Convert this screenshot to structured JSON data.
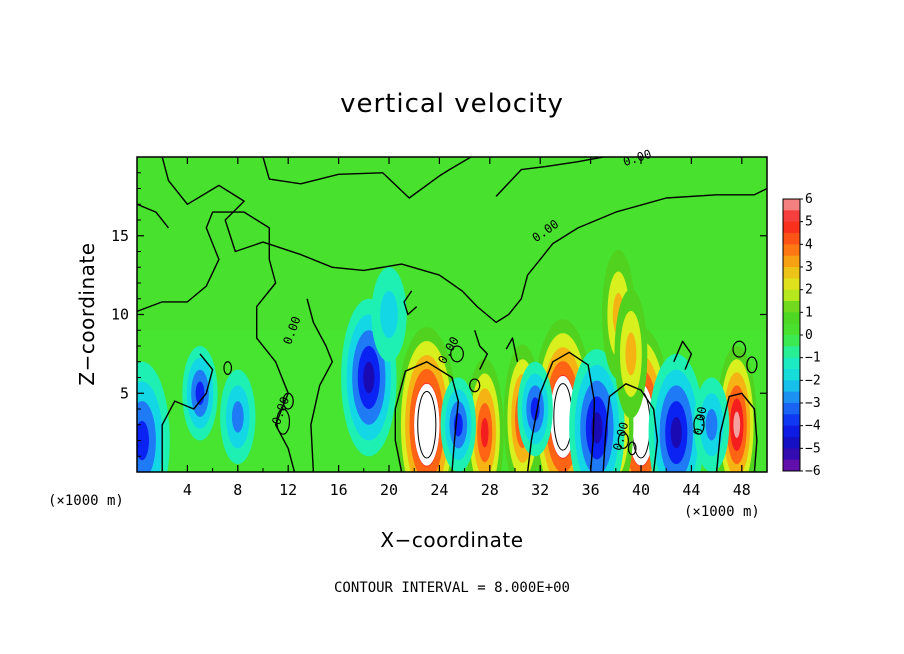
{
  "chart_data": {
    "type": "heatmap",
    "title": "vertical velocity",
    "xlabel": "X−coordinate",
    "ylabel": "Z−coordinate",
    "x_unit_left": "(×1000 m)",
    "x_unit_right": "(×1000 m)",
    "xlim": [
      0,
      50
    ],
    "ylim": [
      0,
      20
    ],
    "x_ticks": [
      4,
      8,
      12,
      16,
      20,
      24,
      28,
      32,
      36,
      40,
      44,
      48
    ],
    "y_ticks": [
      5,
      10,
      15
    ],
    "colorbar": {
      "min": -6,
      "max": 6,
      "ticks": [
        "6",
        "5",
        "4",
        "3",
        "2",
        "1",
        "0",
        "−1",
        "−2",
        "−3",
        "−4",
        "−5",
        "−6"
      ]
    },
    "contour_labels": [
      "0.00",
      "0.00",
      "0.00",
      "0.00",
      "0.00",
      "0.00",
      "0.00"
    ],
    "footnote": "CONTOUR INTERVAL = 8.000E+00",
    "features": [
      {
        "x": 23,
        "z": 3,
        "w": 9,
        "kind": "updraft"
      },
      {
        "x": 33.8,
        "z": 3.5,
        "w": 10,
        "kind": "updraft"
      },
      {
        "x": 40,
        "z": 3,
        "w": 8,
        "kind": "updraft"
      },
      {
        "x": 47.6,
        "z": 3,
        "w": 6,
        "kind": "updraft"
      },
      {
        "x": 27.6,
        "z": 2.5,
        "w": 5,
        "kind": "updraft"
      },
      {
        "x": 30.6,
        "z": 3.4,
        "w": 5,
        "kind": "updraft"
      },
      {
        "x": 38,
        "z": 3,
        "w": 4,
        "kind": "updraft"
      },
      {
        "x": 18.4,
        "z": 6,
        "w": -4.5,
        "kind": "downdraft"
      },
      {
        "x": 25.5,
        "z": 3,
        "w": -3.5,
        "kind": "downdraft"
      },
      {
        "x": 36.5,
        "z": 2.8,
        "w": -5,
        "kind": "downdraft"
      },
      {
        "x": 42.8,
        "z": 2.5,
        "w": -4.5,
        "kind": "downdraft"
      },
      {
        "x": 45.6,
        "z": 3,
        "w": -3,
        "kind": "downdraft"
      },
      {
        "x": 31.6,
        "z": 4,
        "w": -3.5,
        "kind": "downdraft"
      },
      {
        "x": 5,
        "z": 5,
        "w": -3.5,
        "kind": "downdraft"
      },
      {
        "x": 8,
        "z": 3.5,
        "w": -2.5,
        "kind": "downdraft"
      },
      {
        "x": 0.4,
        "z": 2,
        "w": -4,
        "kind": "downdraft"
      },
      {
        "x": 38.2,
        "z": 10,
        "w": 3,
        "kind": "updraft"
      },
      {
        "x": 39.2,
        "z": 7.5,
        "w": 3,
        "kind": "updraft"
      },
      {
        "x": 20,
        "z": 10,
        "w": -1.8,
        "kind": "downdraft"
      }
    ]
  }
}
